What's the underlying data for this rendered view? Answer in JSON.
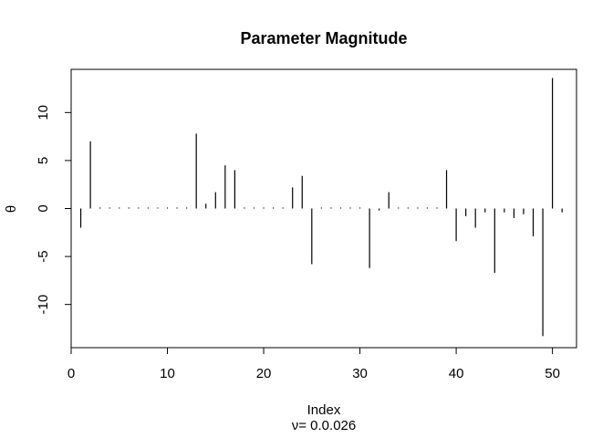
{
  "chart_data": {
    "type": "bar",
    "style": "histogram-spike",
    "title": "Parameter Magnitude",
    "xlabel": "Index",
    "subtitle": "ν= 0.0.026",
    "ylabel": "θ",
    "xlim": [
      0,
      52.5
    ],
    "ylim": [
      -14.5,
      14.5
    ],
    "xticks": [
      0,
      10,
      20,
      30,
      40,
      50
    ],
    "yticks": [
      -10,
      -5,
      0,
      5,
      10
    ],
    "grid": false,
    "x": [
      1,
      2,
      3,
      4,
      5,
      6,
      7,
      8,
      9,
      10,
      11,
      12,
      13,
      14,
      15,
      16,
      17,
      18,
      19,
      20,
      21,
      22,
      23,
      24,
      25,
      26,
      27,
      28,
      29,
      30,
      31,
      32,
      33,
      34,
      35,
      36,
      37,
      38,
      39,
      40,
      41,
      42,
      43,
      44,
      45,
      46,
      47,
      48,
      49,
      50,
      51
    ],
    "values": [
      -2.0,
      7.0,
      0.1,
      0.1,
      0.1,
      0.1,
      0.1,
      0.1,
      0.1,
      0.1,
      0.1,
      0.1,
      7.8,
      0.5,
      1.7,
      4.5,
      4.0,
      0.1,
      0.1,
      0.1,
      0.1,
      0.1,
      2.2,
      3.4,
      -5.8,
      0.1,
      0.1,
      0.1,
      0.1,
      0.1,
      -6.2,
      -0.2,
      1.7,
      0.1,
      0.1,
      0.1,
      0.1,
      0.1,
      4.0,
      -3.4,
      -0.8,
      -2.0,
      -0.4,
      -6.7,
      -0.4,
      -1.0,
      -0.6,
      -2.9,
      -13.3,
      13.6,
      -0.4
    ],
    "line_color": "#000000"
  }
}
